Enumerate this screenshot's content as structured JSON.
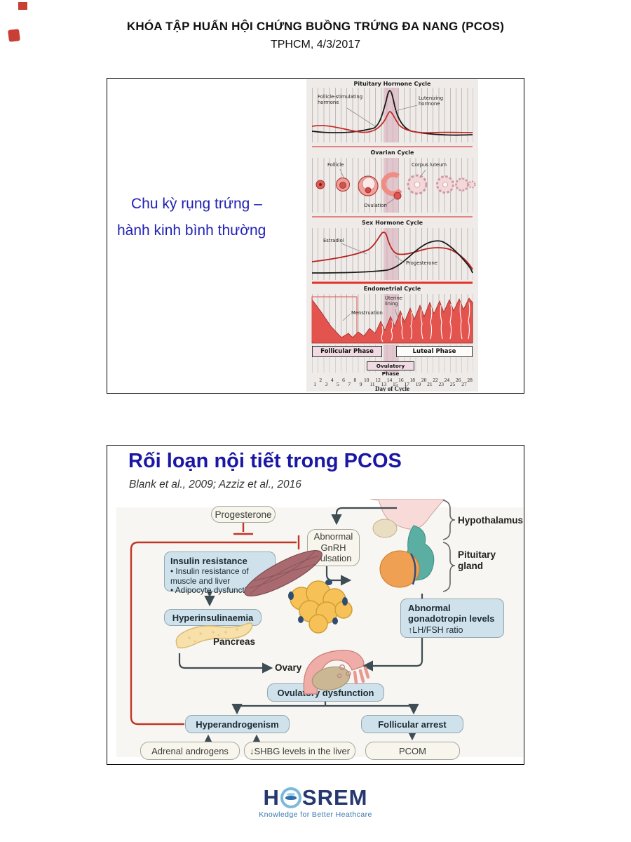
{
  "header": {
    "line1": "KHÓA TẬP HUẤN HỘI CHỨNG BUỒNG TRỨNG ĐA NANG (PCOS)",
    "line2": "TPHCM, 4/3/2017"
  },
  "slide1": {
    "caption": {
      "line1": "Chu kỳ rụng trứng –",
      "line2": "hành kinh bình thường"
    },
    "figure": {
      "panel1": {
        "title": "Pituitary Hormone Cycle",
        "label_fsh": "Follicle-stimulating hormone",
        "label_lh": "Lutenizing hormone"
      },
      "panel2": {
        "title": "Ovarian Cycle",
        "label_follicle": "Follicle",
        "label_ovulation": "Ovulation",
        "label_corpus": "Corpus luteum"
      },
      "panel3": {
        "title": "Sex Hormone Cycle",
        "label_estradiol": "Estradiol",
        "label_progesterone": "Progesterone"
      },
      "panel4": {
        "title": "Endometrial Cycle",
        "label_uterine": "Uterine lining",
        "label_menstruation": "Menstruation"
      },
      "phases": {
        "follicular": "Follicular Phase",
        "luteal": "Luteal Phase",
        "ovulatory": "Ovulatory Phase"
      },
      "days": [
        1,
        2,
        3,
        4,
        5,
        6,
        7,
        8,
        9,
        10,
        11,
        12,
        13,
        14,
        15,
        16,
        17,
        18,
        19,
        20,
        21,
        22,
        23,
        24,
        25,
        26,
        27,
        28
      ],
      "axis_label": "Day of Cycle"
    }
  },
  "slide2": {
    "title": "Rối loạn nội tiết trong PCOS",
    "citation": "Blank et al., 2009; Azziz et al., 2016",
    "boxes": {
      "progesterone": "Progesterone",
      "gnrh": "Abnormal GnRH pulsation",
      "insulin_title": "Insulin resistance",
      "insulin_bullets": [
        "Insulin resistance of muscle and liver",
        "Adipocyte dysfunction"
      ],
      "hyperinsulinaemia": "Hyperinsulinaemia",
      "gonadotropin_title": "Abnormal gonadotropin levels",
      "gonadotropin_sub": "↑LH/FSH ratio",
      "ovulatory": "Ovulatory dysfunction",
      "hyperandrogenism": "Hyperandrogenism",
      "follicular_arrest": "Follicular arrest",
      "adrenal": "Adrenal androgens",
      "shbg": "↓SHBG levels in the liver",
      "pcom": "PCOM"
    },
    "labels": {
      "hypothalamus": "Hypothalamus",
      "pituitary": "Pituitary gland",
      "pancreas": "Pancreas",
      "ovary": "Ovary"
    }
  },
  "footer": {
    "logo_left": "H",
    "logo_right": "SREM",
    "tagline": "Knowledge for Better Heathcare"
  },
  "colors": {
    "title_blue": "#1a17a5",
    "caption_blue": "#2121b5",
    "box_blue": "#cfe2ec",
    "box_cream": "#f7f5ec",
    "inhibit_red": "#c13527",
    "arrow_dark": "#3d4d53",
    "logo_navy": "#25386f"
  }
}
